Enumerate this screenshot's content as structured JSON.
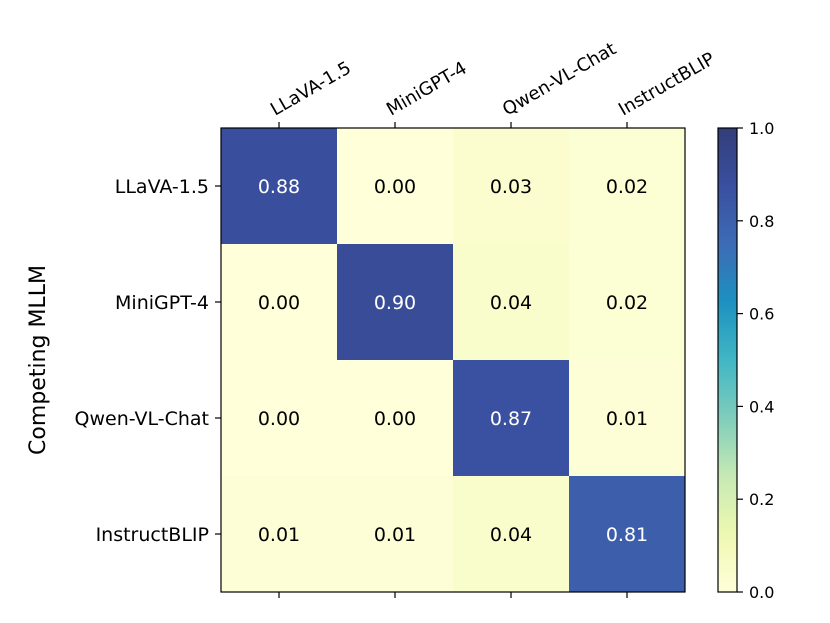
{
  "chart_data": {
    "type": "heatmap",
    "title": "",
    "xlabel": "",
    "ylabel": "Competing MLLM",
    "x_categories": [
      "LLaVA-1.5",
      "MiniGPT-4",
      "Qwen-VL-Chat",
      "InstructBLIP"
    ],
    "y_categories": [
      "LLaVA-1.5",
      "MiniGPT-4",
      "Qwen-VL-Chat",
      "InstructBLIP"
    ],
    "values": [
      [
        0.88,
        0.0,
        0.03,
        0.02
      ],
      [
        0.0,
        0.9,
        0.04,
        0.02
      ],
      [
        0.0,
        0.0,
        0.87,
        0.01
      ],
      [
        0.01,
        0.01,
        0.04,
        0.81
      ]
    ],
    "value_labels": [
      [
        "0.88",
        "0.00",
        "0.03",
        "0.02"
      ],
      [
        "0.00",
        "0.90",
        "0.04",
        "0.02"
      ],
      [
        "0.00",
        "0.00",
        "0.87",
        "0.01"
      ],
      [
        "0.01",
        "0.01",
        "0.04",
        "0.81"
      ]
    ],
    "x_tick_position": "top",
    "colormap": "YlGnBu",
    "colorbar": {
      "range": [
        0.0,
        1.0
      ],
      "ticks": [
        0.0,
        0.2,
        0.4,
        0.6,
        0.8,
        1.0
      ],
      "tick_labels": [
        "0.0",
        "0.2",
        "0.4",
        "0.6",
        "0.8",
        "1.0"
      ]
    },
    "colors": {
      "low": "#fefed6",
      "high": "#333e79",
      "text_dark": "#000000",
      "text_light": "#ffffff"
    }
  }
}
